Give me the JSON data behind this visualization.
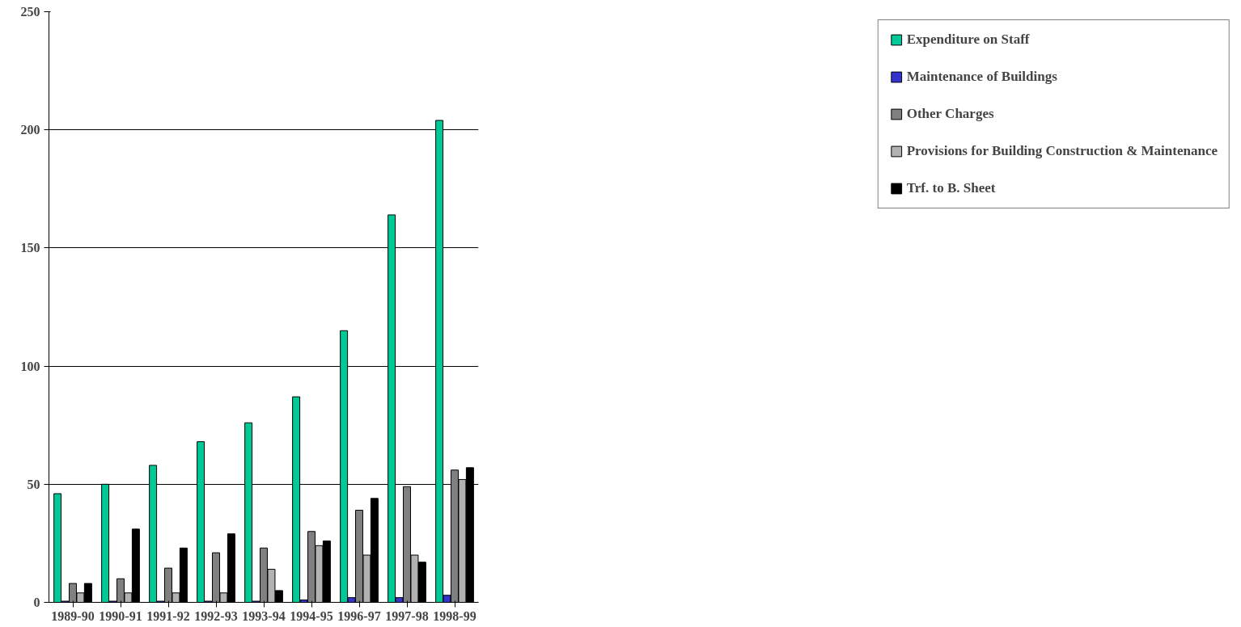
{
  "chart_data": {
    "type": "bar",
    "categories": [
      "1989-90",
      "1990-91",
      "1991-92",
      "1992-93",
      "1993-94",
      "1994-95",
      "1996-97",
      "1997-98",
      "1998-99"
    ],
    "series": [
      {
        "name": "Expenditure on Staff",
        "color": "#00c896",
        "values": [
          46,
          50,
          58,
          68,
          76,
          87,
          115,
          164,
          204
        ]
      },
      {
        "name": "Maintenance of Buildings",
        "color": "#3333cc",
        "values": [
          0.5,
          0.5,
          0.5,
          0.5,
          0.5,
          1,
          2,
          2,
          3
        ]
      },
      {
        "name": "Other Charges",
        "color": "#808080",
        "values": [
          8,
          10,
          14.5,
          21,
          23,
          30,
          39,
          49,
          56
        ]
      },
      {
        "name": "Provisions for Building Construction & Maintenance",
        "color": "#b2b2b2",
        "values": [
          4,
          4,
          4,
          4,
          14,
          24,
          20,
          20,
          52
        ]
      },
      {
        "name": "Trf. to B. Sheet",
        "color": "#000000",
        "values": [
          8,
          31,
          23,
          29,
          5,
          26,
          44,
          17,
          57
        ]
      }
    ],
    "ylim": [
      0,
      250
    ],
    "yticks": [
      0,
      50,
      100,
      150,
      200,
      250
    ],
    "grid": "y",
    "legend": "right"
  }
}
